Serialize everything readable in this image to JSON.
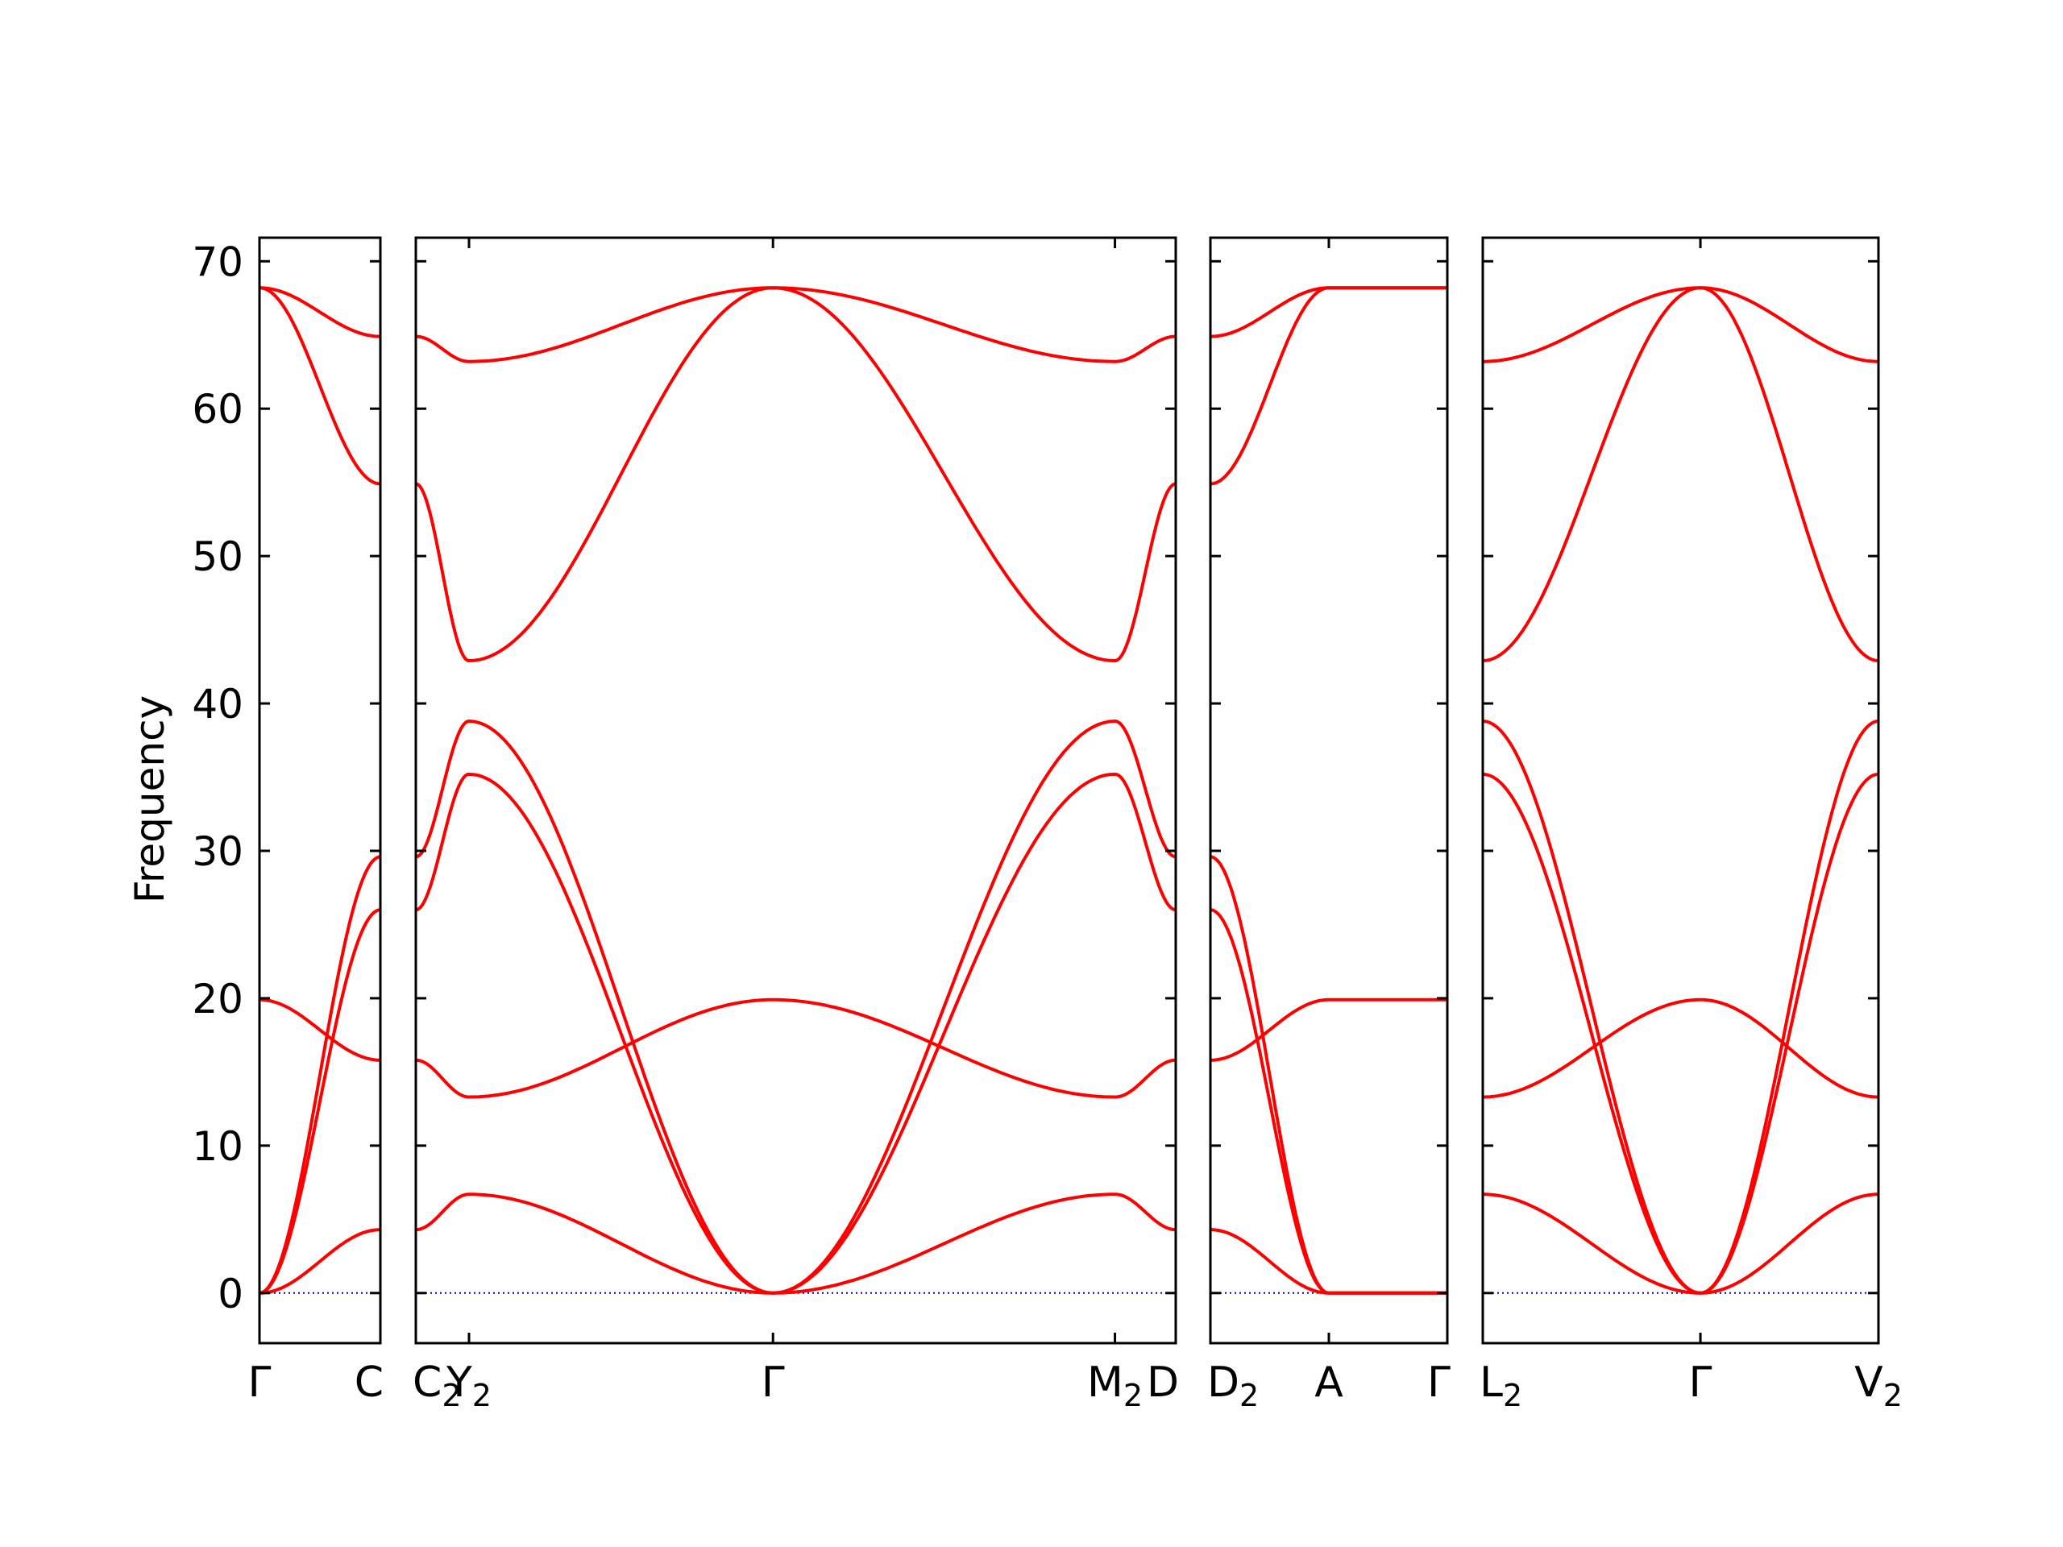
{
  "chart_data": {
    "type": "line",
    "title": "",
    "ylabel": "Frequency",
    "ylim": [
      -3.4,
      71.6
    ],
    "yticks": [
      0,
      10,
      20,
      30,
      40,
      50,
      60,
      70
    ],
    "band_color": "#ff0000",
    "zero_line_color": "#0000aa",
    "grid": false,
    "legend": "none",
    "panels": [
      {
        "labels": [
          {
            "main": "Γ",
            "sub": ""
          },
          {
            "main": "C",
            "sub": ""
          }
        ],
        "bands": [
          [
            0.0,
            4.3
          ],
          [
            0.0,
            26.0
          ],
          [
            0.0,
            29.6
          ],
          [
            19.9,
            15.8
          ],
          [
            68.2,
            54.9
          ],
          [
            68.2,
            64.9
          ]
        ]
      },
      {
        "labels": [
          {
            "main": "C",
            "sub": "2"
          },
          {
            "main": "Y",
            "sub": "2"
          },
          {
            "main": "Γ",
            "sub": ""
          },
          {
            "main": "M",
            "sub": "2"
          },
          {
            "main": "D",
            "sub": ""
          }
        ],
        "bands": [
          [
            4.3,
            6.7,
            0.0,
            6.7,
            4.3
          ],
          [
            15.8,
            13.3,
            19.9,
            13.3,
            15.8
          ],
          [
            26.0,
            35.2,
            0.0,
            35.2,
            26.0
          ],
          [
            29.6,
            38.8,
            0.0,
            38.8,
            29.6
          ],
          [
            54.9,
            42.9,
            68.2,
            42.9,
            54.9
          ],
          [
            64.9,
            63.2,
            68.2,
            63.2,
            64.9
          ]
        ]
      },
      {
        "labels": [
          {
            "main": "D",
            "sub": "2"
          },
          {
            "main": "A",
            "sub": ""
          },
          {
            "main": "Γ",
            "sub": ""
          }
        ],
        "bands": [
          [
            4.3,
            0.0,
            0.0
          ],
          [
            15.8,
            19.9,
            19.9
          ],
          [
            26.0,
            0.0,
            0.0
          ],
          [
            29.6,
            0.0,
            0.0
          ],
          [
            54.9,
            68.2,
            68.2
          ],
          [
            64.9,
            68.2,
            68.2
          ]
        ]
      },
      {
        "labels": [
          {
            "main": "L",
            "sub": "2"
          },
          {
            "main": "Γ",
            "sub": ""
          },
          {
            "main": "V",
            "sub": "2"
          }
        ],
        "bands": [
          [
            6.7,
            0.0,
            6.7
          ],
          [
            13.3,
            19.9,
            13.3
          ],
          [
            35.2,
            0.0,
            35.2
          ],
          [
            38.8,
            0.0,
            38.8
          ],
          [
            42.9,
            68.2,
            42.9
          ],
          [
            63.2,
            68.2,
            63.2
          ]
        ]
      }
    ]
  }
}
